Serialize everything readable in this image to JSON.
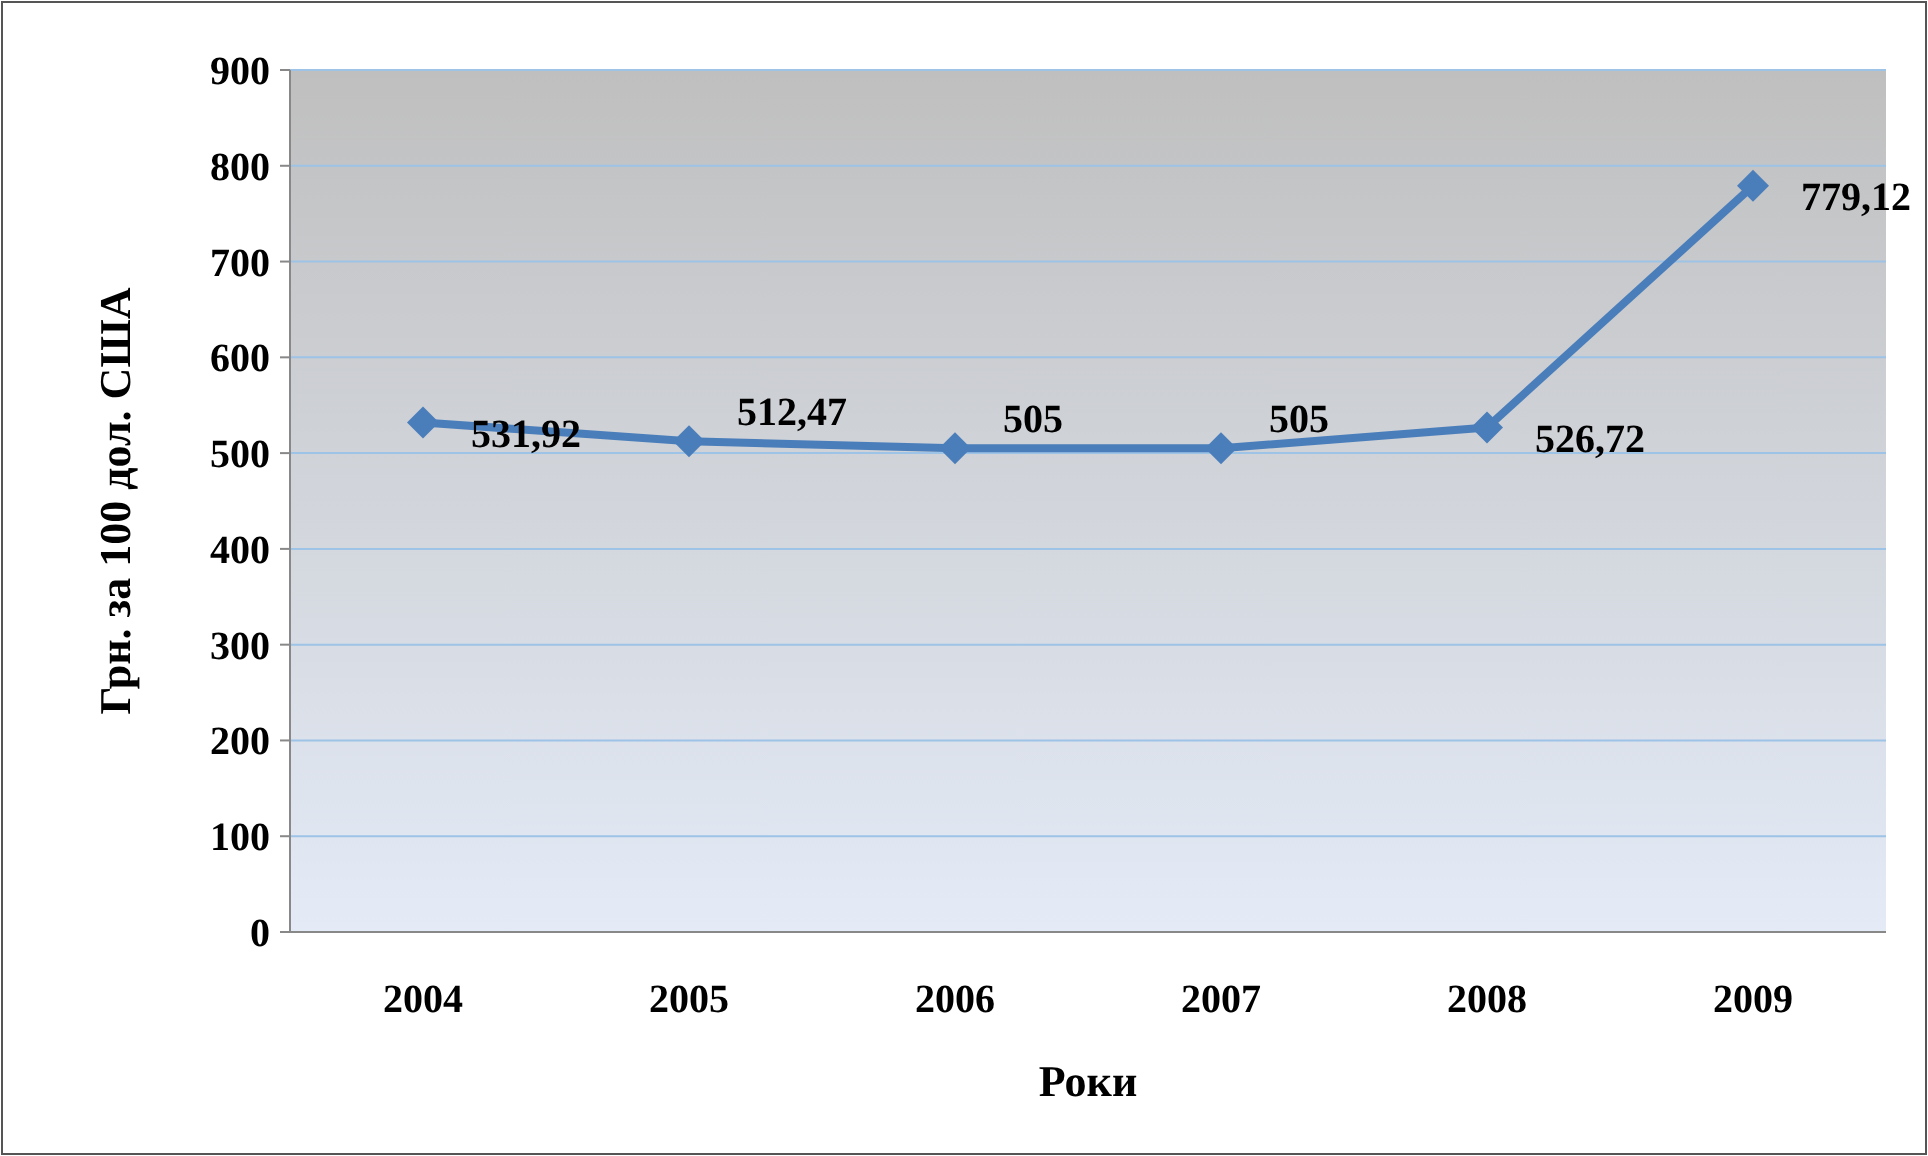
{
  "chart_data": {
    "type": "line",
    "xlabel": "Роки",
    "ylabel": "Грн. за 100 дол. США",
    "categories": [
      "2004",
      "2005",
      "2006",
      "2007",
      "2008",
      "2009"
    ],
    "series": [
      {
        "color": "#4a7ebb",
        "values": [
          531.92,
          512.47,
          505,
          505,
          526.72,
          779.12
        ],
        "value_labels": [
          "531,92",
          "512,47",
          "505",
          "505",
          "526,72",
          "779,12"
        ]
      }
    ],
    "ylim": [
      0,
      900
    ],
    "yticks": [
      0,
      100,
      200,
      300,
      400,
      500,
      600,
      700,
      800,
      900
    ],
    "grid": "y",
    "marker": "diamond",
    "line_style": "solid"
  }
}
